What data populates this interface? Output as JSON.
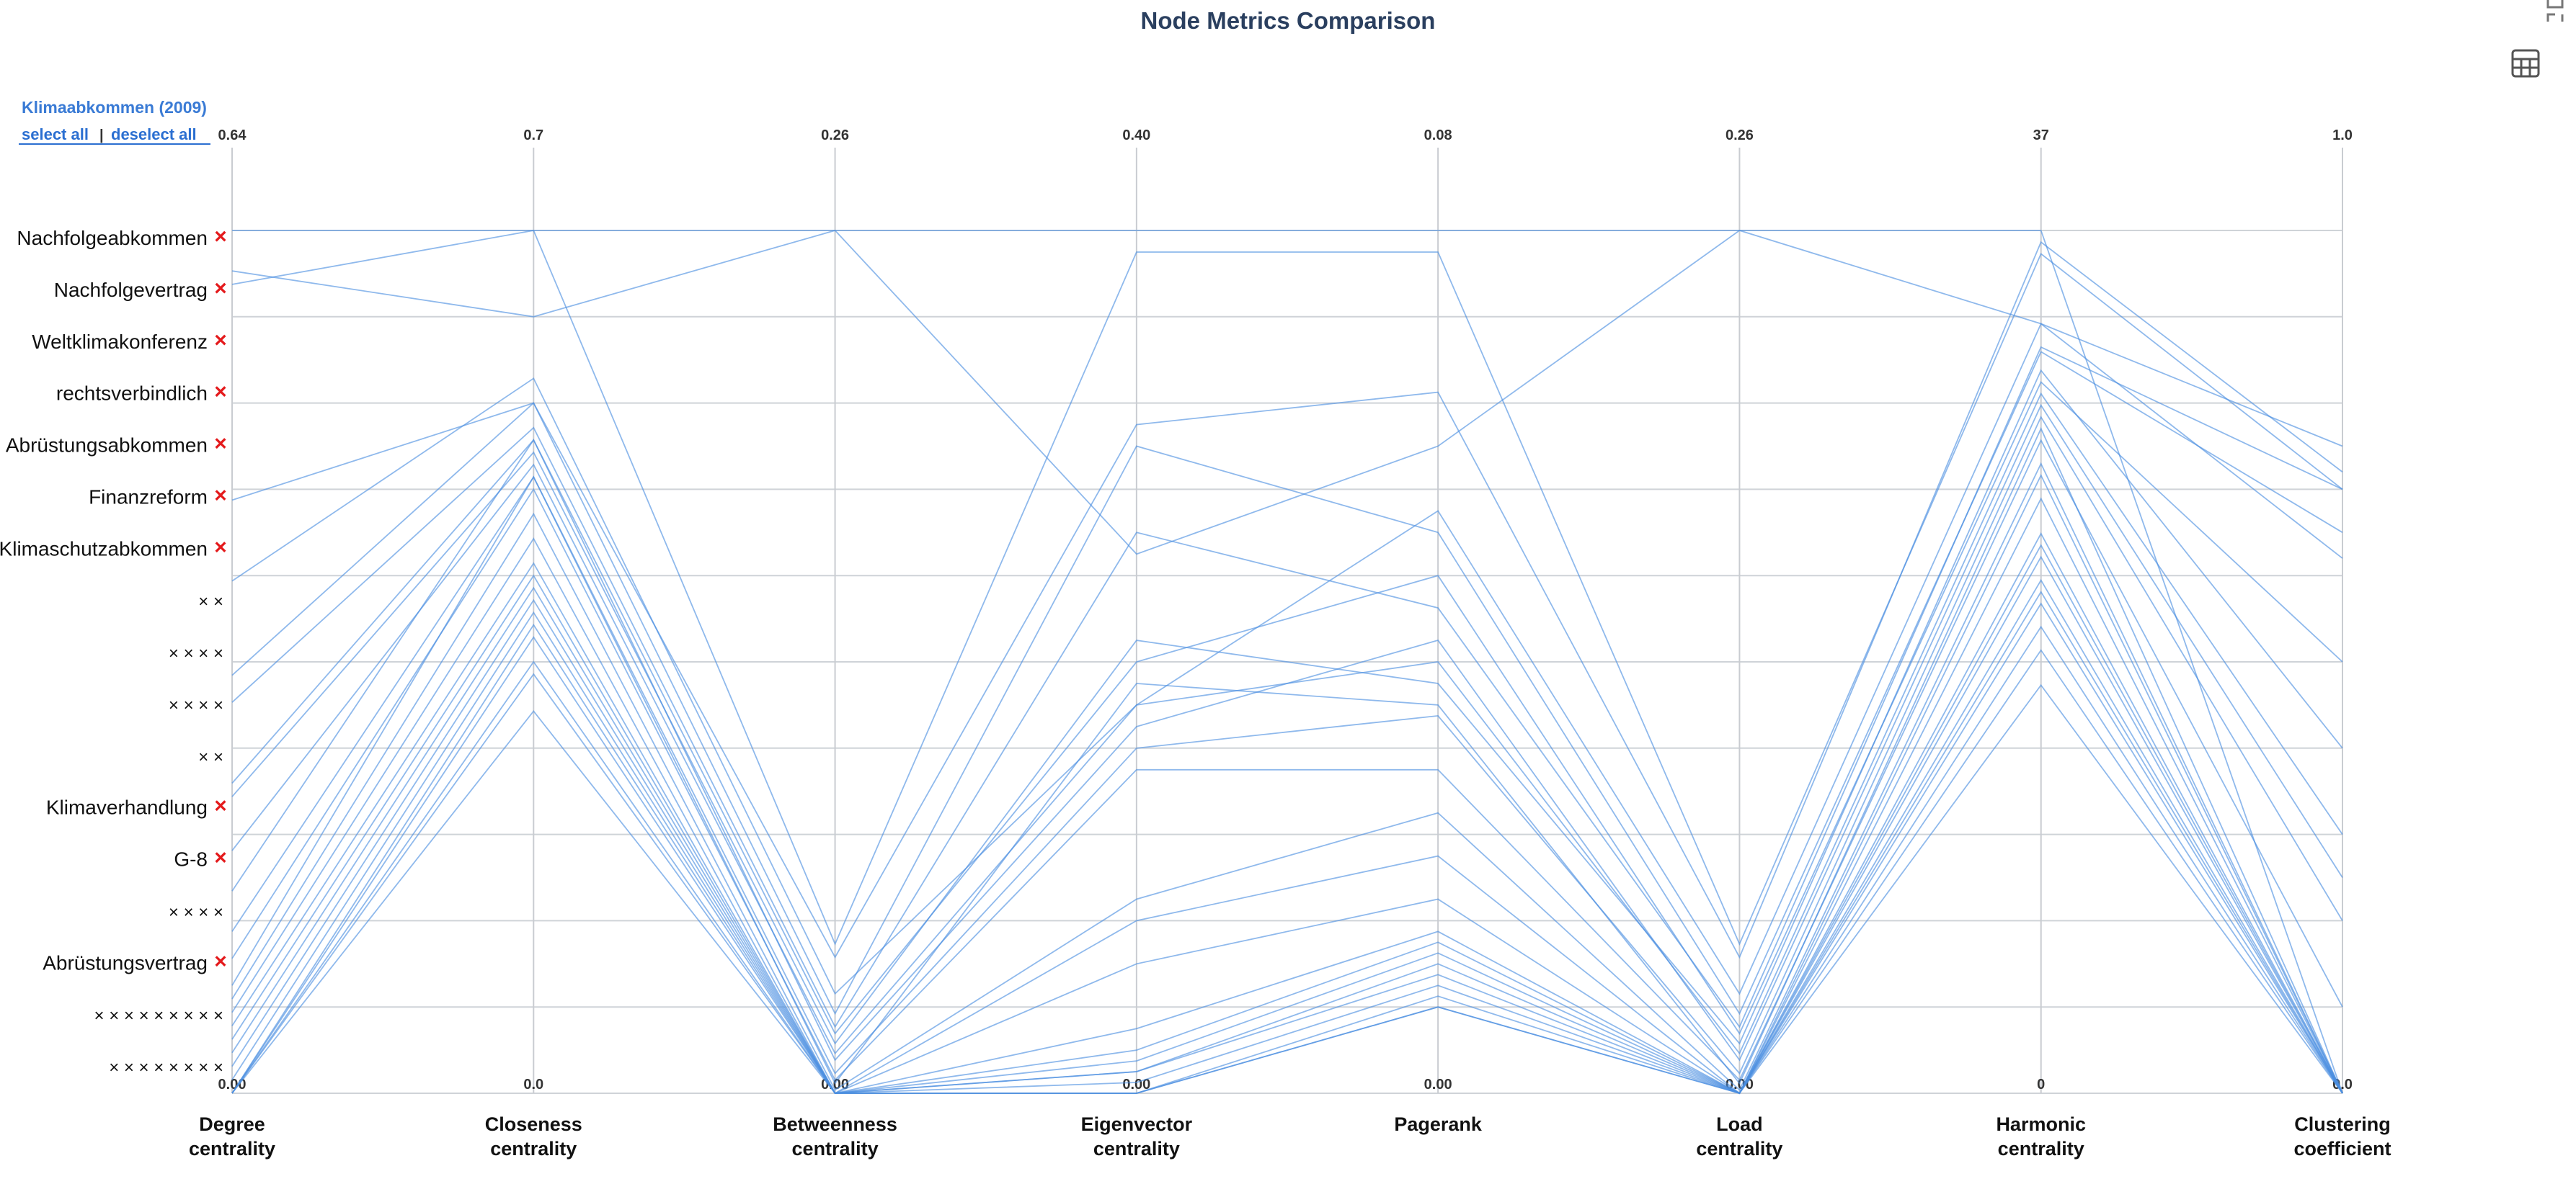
{
  "title": "Node Metrics Comparison",
  "selected_label": "Klimaabkommen (2009)",
  "select_all": "select all",
  "separator": "|",
  "deselect_all": "deselect all",
  "icons": [
    "table-icon",
    "collapse-icon"
  ],
  "colors": {
    "line": "#4a8ee0",
    "remove": "#e41a1c",
    "title": "#2a3f5f",
    "link": "#2b6fd1"
  },
  "row_labels": [
    {
      "name": "Nachfolgeabkommen",
      "removable": true
    },
    {
      "name": "Nachfolgevertrag",
      "removable": true
    },
    {
      "name": "Weltklimakonferenz",
      "removable": true
    },
    {
      "name": "rechtsverbindlich",
      "removable": true
    },
    {
      "name": "Abrüstungsabkommen",
      "removable": true
    },
    {
      "name": "Finanzreform",
      "removable": true
    },
    {
      "name": "Klimaschutzabkommen",
      "removable": true
    },
    {
      "name": "× ×",
      "removable": false
    },
    {
      "name": "× × × ×",
      "removable": false
    },
    {
      "name": "× × × ×",
      "removable": false
    },
    {
      "name": "× ×",
      "removable": false
    },
    {
      "name": "Klimaverhandlung",
      "removable": true
    },
    {
      "name": "G-8",
      "removable": true
    },
    {
      "name": "× × × ×",
      "removable": false
    },
    {
      "name": "Abrüstungsvertrag",
      "removable": true
    },
    {
      "name": "× × × × × × × × ×",
      "removable": false
    },
    {
      "name": "× × × × × × × ×",
      "removable": false
    }
  ],
  "chart_data": {
    "type": "parallel-coordinates",
    "title": "Node Metrics Comparison",
    "axes": [
      {
        "name": "Degree centrality",
        "line1": "Degree",
        "line2": "centrality",
        "min": 0,
        "max": 0.64,
        "min_label": "0.00",
        "max_label": "0.64"
      },
      {
        "name": "Closeness centrality",
        "line1": "Closeness",
        "line2": "centrality",
        "min": 0,
        "max": 0.7,
        "min_label": "0.0",
        "max_label": "0.7"
      },
      {
        "name": "Betweenness centrality",
        "line1": "Betweenness",
        "line2": "centrality",
        "min": 0,
        "max": 0.26,
        "min_label": "0.00",
        "max_label": "0.26"
      },
      {
        "name": "Eigenvector centrality",
        "line1": "Eigenvector",
        "line2": "centrality",
        "min": 0,
        "max": 0.4,
        "min_label": "0.00",
        "max_label": "0.40"
      },
      {
        "name": "Pagerank",
        "line1": "Pagerank",
        "line2": "",
        "min": 0,
        "max": 0.08,
        "min_label": "0.00",
        "max_label": "0.08"
      },
      {
        "name": "Load centrality",
        "line1": "Load",
        "line2": "centrality",
        "min": 0,
        "max": 0.26,
        "min_label": "0.00",
        "max_label": "0.26"
      },
      {
        "name": "Harmonic centrality",
        "line1": "Harmonic",
        "line2": "centrality",
        "min": 0,
        "max": 37,
        "min_label": "0",
        "max_label": "37"
      },
      {
        "name": "Clustering coefficient",
        "line1": "Clustering",
        "line2": "coefficient",
        "min": 0,
        "max": 1.0,
        "min_label": "0.0",
        "max_label": "1.0"
      }
    ],
    "rows": [
      [
        0.64,
        0.7,
        0.26,
        0.4,
        0.08,
        0.26,
        37.0,
        0.0
      ],
      [
        0.6,
        0.7,
        0.045,
        0.39,
        0.078,
        0.045,
        36.0,
        0.7
      ],
      [
        0.61,
        0.63,
        0.26,
        0.25,
        0.06,
        0.26,
        33.0,
        0.75
      ],
      [
        0.44,
        0.56,
        0.041,
        0.31,
        0.065,
        0.041,
        36.5,
        0.72
      ],
      [
        0.38,
        0.58,
        0.03,
        0.18,
        0.054,
        0.03,
        33.0,
        0.62
      ],
      [
        0.31,
        0.56,
        0.024,
        0.3,
        0.052,
        0.024,
        31.8,
        0.65
      ],
      [
        0.29,
        0.54,
        0.02,
        0.26,
        0.045,
        0.02,
        32.0,
        0.7
      ],
      [
        0.23,
        0.53,
        0.018,
        0.2,
        0.048,
        0.018,
        30.5,
        0.5
      ],
      [
        0.22,
        0.52,
        0.015,
        0.21,
        0.038,
        0.015,
        31.0,
        0.4
      ],
      [
        0.18,
        0.51,
        0.012,
        0.18,
        0.04,
        0.012,
        30.0,
        0.3
      ],
      [
        0.15,
        0.53,
        0.01,
        0.17,
        0.042,
        0.01,
        29.5,
        0.25
      ],
      [
        0.12,
        0.5,
        0.006,
        0.16,
        0.035,
        0.006,
        29.0,
        0.2
      ],
      [
        0.1,
        0.49,
        0.004,
        0.15,
        0.03,
        0.004,
        28.0,
        0.1
      ],
      [
        0.08,
        0.5,
        0.003,
        0.19,
        0.036,
        0.003,
        28.5,
        0.0
      ],
      [
        0.07,
        0.47,
        0.001,
        0.09,
        0.026,
        0.001,
        27.0,
        0.0
      ],
      [
        0.06,
        0.45,
        0.0,
        0.08,
        0.022,
        0.0,
        26.5,
        0.0
      ],
      [
        0.05,
        0.43,
        0.0,
        0.06,
        0.018,
        0.0,
        25.5,
        0.0
      ],
      [
        0.04,
        0.42,
        0.0,
        0.03,
        0.015,
        0.0,
        24.0,
        0.0
      ],
      [
        0.03,
        0.41,
        0.0,
        0.02,
        0.014,
        0.0,
        23.5,
        0.0
      ],
      [
        0.02,
        0.4,
        0.0,
        0.015,
        0.013,
        0.0,
        23.0,
        0.0
      ],
      [
        0.01,
        0.39,
        0.0,
        0.01,
        0.012,
        0.0,
        22.0,
        0.0
      ],
      [
        0.0,
        0.38,
        0.0,
        0.01,
        0.011,
        0.0,
        21.5,
        0.0
      ],
      [
        0.0,
        0.37,
        0.0,
        0.005,
        0.01,
        0.0,
        21.0,
        0.0
      ],
      [
        0.0,
        0.35,
        0.0,
        0.0,
        0.009,
        0.0,
        20.0,
        0.0
      ],
      [
        0.0,
        0.34,
        0.0,
        0.0,
        0.008,
        0.0,
        19.0,
        0.0
      ],
      [
        0.0,
        0.31,
        0.0,
        0.0,
        0.008,
        0.0,
        17.5,
        0.0
      ]
    ]
  }
}
